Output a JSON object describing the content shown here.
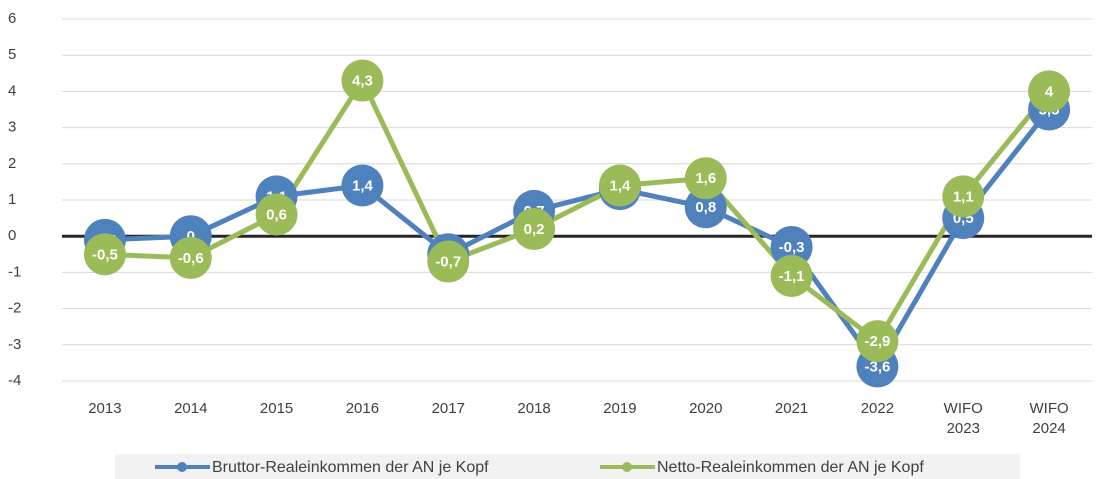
{
  "chart_data": {
    "type": "line",
    "categories": [
      "2013",
      "2014",
      "2015",
      "2016",
      "2017",
      "2018",
      "2019",
      "2020",
      "2021",
      "2022",
      "WIFO 2023",
      "WIFO 2024"
    ],
    "series": [
      {
        "name": "Bruttor-Realeinkommen der AN je Kopf",
        "color": "#4f81bd",
        "values": [
          -0.1,
          0,
          1.1,
          1.4,
          -0.5,
          0.7,
          1.3,
          0.8,
          -0.3,
          -3.6,
          0.5,
          3.5
        ],
        "value_labels": [
          "-0,1",
          "0",
          "1,1",
          "1,4",
          "-0,5",
          "0,7",
          "1,3",
          "0,8",
          "-0,3",
          "-3,6",
          "0,5",
          "3,5"
        ]
      },
      {
        "name": "Netto-Realeinkommen der AN je Kopf",
        "color": "#9bbb59",
        "values": [
          -0.5,
          -0.6,
          0.6,
          4.3,
          -0.7,
          0.2,
          1.4,
          1.6,
          -1.1,
          -2.9,
          1.1,
          4
        ],
        "value_labels": [
          "-0,5",
          "-0,6",
          "0,6",
          "4,3",
          "-0,7",
          "0,2",
          "1,4",
          "1,6",
          "-1,1",
          "-2,9",
          "1,1",
          "4"
        ]
      }
    ],
    "ylim": [
      -4,
      6
    ],
    "yticks": [
      -4,
      -3,
      -2,
      -1,
      0,
      1,
      2,
      3,
      4,
      5,
      6
    ],
    "grid": true,
    "legend": "bottom"
  }
}
